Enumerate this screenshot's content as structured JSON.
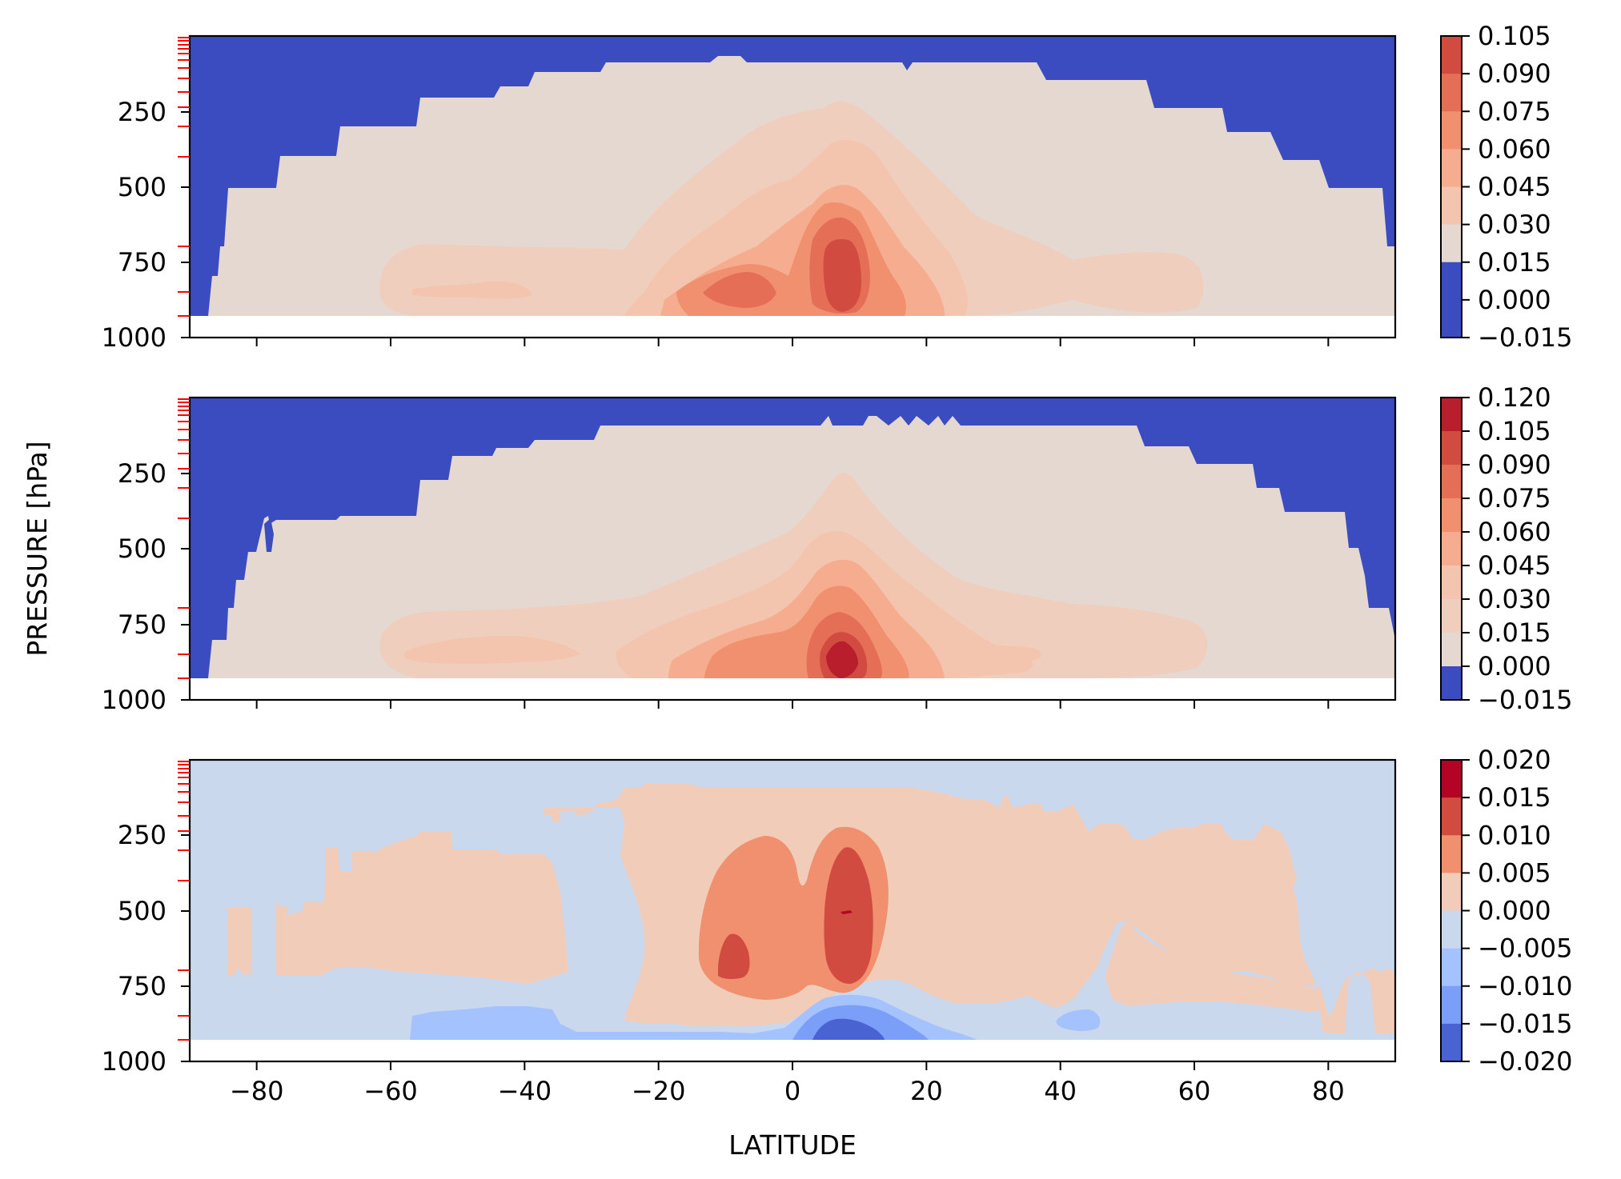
{
  "chart_data": [
    {
      "type": "heatmap",
      "title": "",
      "xlabel": "",
      "ylabel": "",
      "xlim": [
        -90,
        90
      ],
      "ylim": [
        1000,
        0
      ],
      "y_ticks": [
        "250",
        "500",
        "750",
        "1000"
      ],
      "x_ticks": [],
      "colorbar_ticks": [
        "0.105",
        "0.090",
        "0.075",
        "0.060",
        "0.045",
        "0.030",
        "0.015",
        "0.000",
        "−0.015"
      ],
      "colorbar_colors": [
        "#d24b40",
        "#e46e56",
        "#f0906e",
        "#f6ad8f",
        "#f3c4ae",
        "#e4d8d1",
        "#3b4cc0"
      ],
      "low_region_color": "#3b4cc0",
      "background_color": "#e4d8d1"
    },
    {
      "type": "heatmap",
      "title": "",
      "xlabel": "",
      "ylabel": "PRESSURE [hPa]",
      "xlim": [
        -90,
        90
      ],
      "ylim": [
        1000,
        0
      ],
      "y_ticks": [
        "250",
        "500",
        "750",
        "1000"
      ],
      "x_ticks": [],
      "colorbar_ticks": [
        "0.120",
        "0.105",
        "0.090",
        "0.075",
        "0.060",
        "0.045",
        "0.030",
        "0.015",
        "0.000",
        "−0.015"
      ],
      "colorbar_colors": [
        "#b81e2c",
        "#d24b40",
        "#e46e56",
        "#f0906e",
        "#f6ad8f",
        "#f3c4ae",
        "#efcebd",
        "#e4d8d1",
        "#3b4cc0"
      ],
      "low_region_color": "#3b4cc0",
      "background_color": "#e4d8d1"
    },
    {
      "type": "heatmap",
      "title": "",
      "xlabel": "LATITUDE",
      "ylabel": "",
      "xlim": [
        -90,
        90
      ],
      "ylim": [
        1000,
        0
      ],
      "y_ticks": [
        "250",
        "500",
        "750",
        "1000"
      ],
      "x_ticks": [
        "−80",
        "−60",
        "−40",
        "−20",
        "0",
        "20",
        "40",
        "60",
        "80"
      ],
      "colorbar_ticks": [
        "0.020",
        "0.015",
        "0.010",
        "0.005",
        "0.000",
        "−0.005",
        "−0.010",
        "−0.015",
        "−0.020"
      ],
      "colorbar_colors": [
        "#b40426",
        "#d24b40",
        "#f0906e",
        "#f1cdb9",
        "#cad8ee",
        "#a3c2fe",
        "#7b9ff9",
        "#4a63d3"
      ],
      "background_color": "#cad8ee"
    }
  ]
}
